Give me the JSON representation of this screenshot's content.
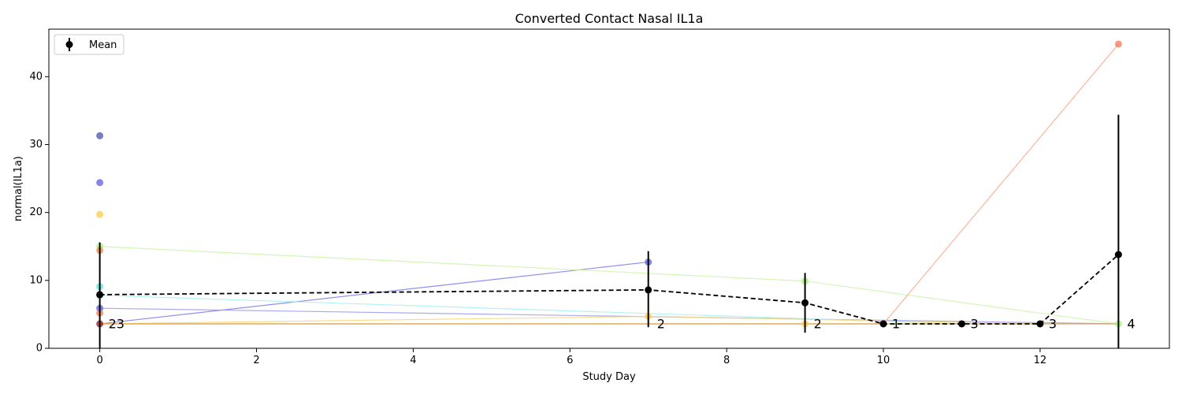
{
  "chart_data": {
    "type": "line",
    "title": "Converted Contact Nasal IL1a",
    "xlabel": "Study Day",
    "ylabel": "normal(IL1a)",
    "xlim": [
      -0.65,
      13.65
    ],
    "ylim": [
      0,
      47
    ],
    "xticks": [
      0,
      2,
      4,
      6,
      8,
      10,
      12
    ],
    "yticks": [
      0,
      10,
      20,
      30,
      40
    ],
    "grid": false,
    "legend": {
      "placement": "upper-left",
      "entries": [
        "Mean"
      ]
    },
    "mean_series": {
      "name": "Mean",
      "color": "#000000",
      "x": [
        0,
        7,
        9,
        10,
        11,
        12,
        13
      ],
      "y": [
        7.9,
        8.6,
        6.7,
        3.6,
        3.6,
        3.6,
        13.8
      ],
      "err_low": [
        0,
        3.1,
        2.3,
        3.6,
        3.6,
        3.6,
        0
      ],
      "err_high": [
        15.6,
        14.3,
        11.1,
        3.6,
        3.6,
        3.6,
        34.4
      ],
      "counts": [
        "23",
        "2",
        "2",
        "1",
        "3",
        "3",
        "4"
      ]
    },
    "subject_series": [
      {
        "color": "#7b7bee",
        "x": [
          0,
          7
        ],
        "y": [
          3.6,
          12.7
        ]
      },
      {
        "color": "#9a9aee",
        "x": [
          0,
          13
        ],
        "y": [
          5.9,
          3.6
        ]
      },
      {
        "color": "#ccf5a8",
        "x": [
          0,
          9,
          13
        ],
        "y": [
          15.0,
          9.9,
          3.6
        ]
      },
      {
        "color": "#a8eef0",
        "x": [
          0,
          11
        ],
        "y": [
          7.8,
          3.6
        ]
      },
      {
        "color": "#f7a88c",
        "x": [
          0,
          10,
          13
        ],
        "y": [
          3.6,
          3.6,
          44.8
        ]
      },
      {
        "color": "#f5d77a",
        "x": [
          0,
          7,
          12
        ],
        "y": [
          3.6,
          4.7,
          3.6
        ]
      },
      {
        "color": "#d9a030",
        "x": [
          0,
          13
        ],
        "y": [
          3.6,
          3.6
        ]
      }
    ],
    "points": [
      {
        "x": 0,
        "y": 31.3,
        "color": "#4a55a8"
      },
      {
        "x": 0,
        "y": 24.4,
        "color": "#5e5ee0"
      },
      {
        "x": 0,
        "y": 19.7,
        "color": "#ffc94a"
      },
      {
        "x": 0,
        "y": 15.0,
        "color": "#a8f07a"
      },
      {
        "x": 0,
        "y": 14.4,
        "color": "#f2835a"
      },
      {
        "x": 0,
        "y": 9.1,
        "color": "#5ee0e0"
      },
      {
        "x": 0,
        "y": 7.8,
        "color": "#6ad8a0"
      },
      {
        "x": 0,
        "y": 5.9,
        "color": "#5e5ee0"
      },
      {
        "x": 0,
        "y": 5.2,
        "color": "#f27a5a"
      },
      {
        "x": 0,
        "y": 3.6,
        "color": "#8b1a1a"
      },
      {
        "x": 7,
        "y": 12.7,
        "color": "#5e5ee0"
      },
      {
        "x": 7,
        "y": 4.7,
        "color": "#ffc94a"
      },
      {
        "x": 9,
        "y": 9.9,
        "color": "#a8f07a"
      },
      {
        "x": 9,
        "y": 3.6,
        "color": "#ffc94a"
      },
      {
        "x": 13,
        "y": 44.8,
        "color": "#f27a5a"
      },
      {
        "x": 13,
        "y": 3.6,
        "color": "#a8f07a"
      }
    ]
  }
}
